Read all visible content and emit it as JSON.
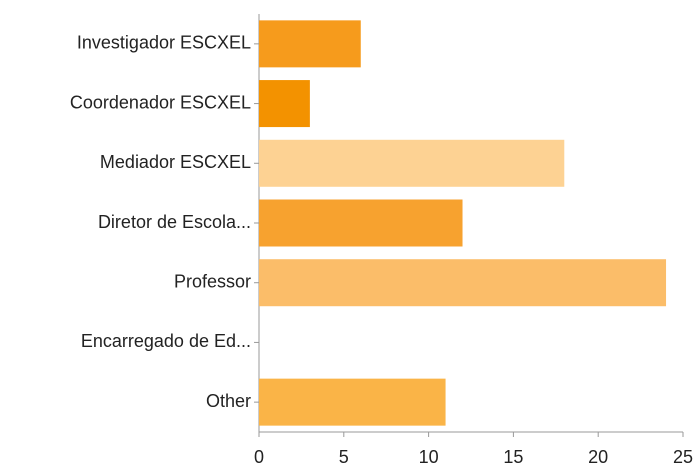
{
  "chart_data": {
    "type": "bar",
    "orientation": "horizontal",
    "categories": [
      "Investigador ESCXEL",
      "Coordenador ESCXEL",
      "Mediador ESCXEL",
      "Diretor de Escola...",
      "Professor",
      "Encarregado de Ed...",
      "Other"
    ],
    "values": [
      6,
      3,
      18,
      12,
      24,
      0,
      11
    ],
    "colors": [
      "#f69b1c",
      "#f39200",
      "#fdd293",
      "#f7a22f",
      "#fbbd69",
      "#f9b04a",
      "#fab447"
    ],
    "xlim": [
      0,
      25
    ],
    "xticks": [
      0,
      5,
      10,
      15,
      20,
      25
    ],
    "grid": false
  }
}
